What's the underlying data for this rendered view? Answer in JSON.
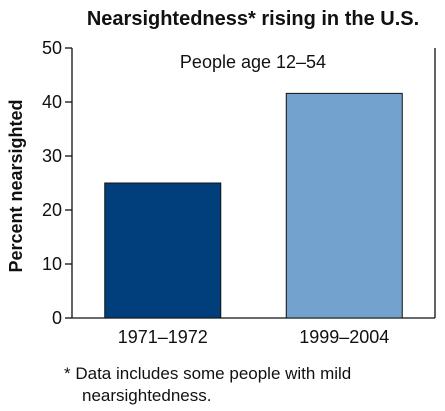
{
  "chart_data": {
    "type": "bar",
    "title": "Nearsightedness* rising in the U.S.",
    "subtitle": "People age 12–54",
    "xlabel": "",
    "ylabel": "Percent nearsighted",
    "categories": [
      "1971–1972",
      "1999–2004"
    ],
    "values": [
      25,
      41.6
    ],
    "ylim": [
      0,
      50
    ],
    "yticks": [
      0,
      10,
      20,
      30,
      40,
      50
    ],
    "yticks_text": [
      "0",
      "10",
      "20",
      "30",
      "40",
      "50"
    ],
    "bar_colors": [
      "#003f7c",
      "#74a2cf"
    ],
    "grid": false,
    "legend": "none"
  },
  "footnote": {
    "line1": "* Data includes some people with mild",
    "line2": "nearsightedness."
  }
}
